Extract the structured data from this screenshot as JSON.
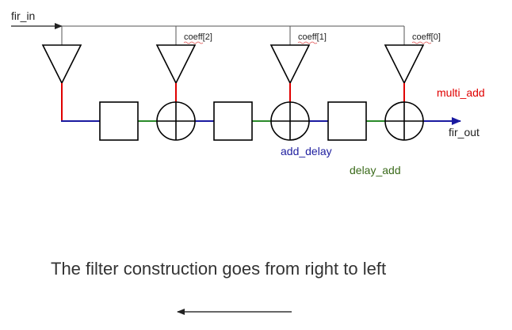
{
  "labels": {
    "input": "fir_in",
    "output": "fir_out",
    "coeffs": [
      "coeff[2]",
      "coeff[1]",
      "coeff[0]"
    ],
    "multi_add": "multi_add",
    "add_delay": "add_delay",
    "delay_add": "delay_add"
  },
  "caption": "The filter construction goes from right to left",
  "colors": {
    "wire": "#555555",
    "block": "#000000",
    "multi_add": "#e00000",
    "add_delay": "#1a1aa0",
    "delay_add": "#2a8a2a",
    "underline": "#e05050",
    "add_delay_text": "#2020a0",
    "delay_add_text": "#3a6a1a"
  }
}
